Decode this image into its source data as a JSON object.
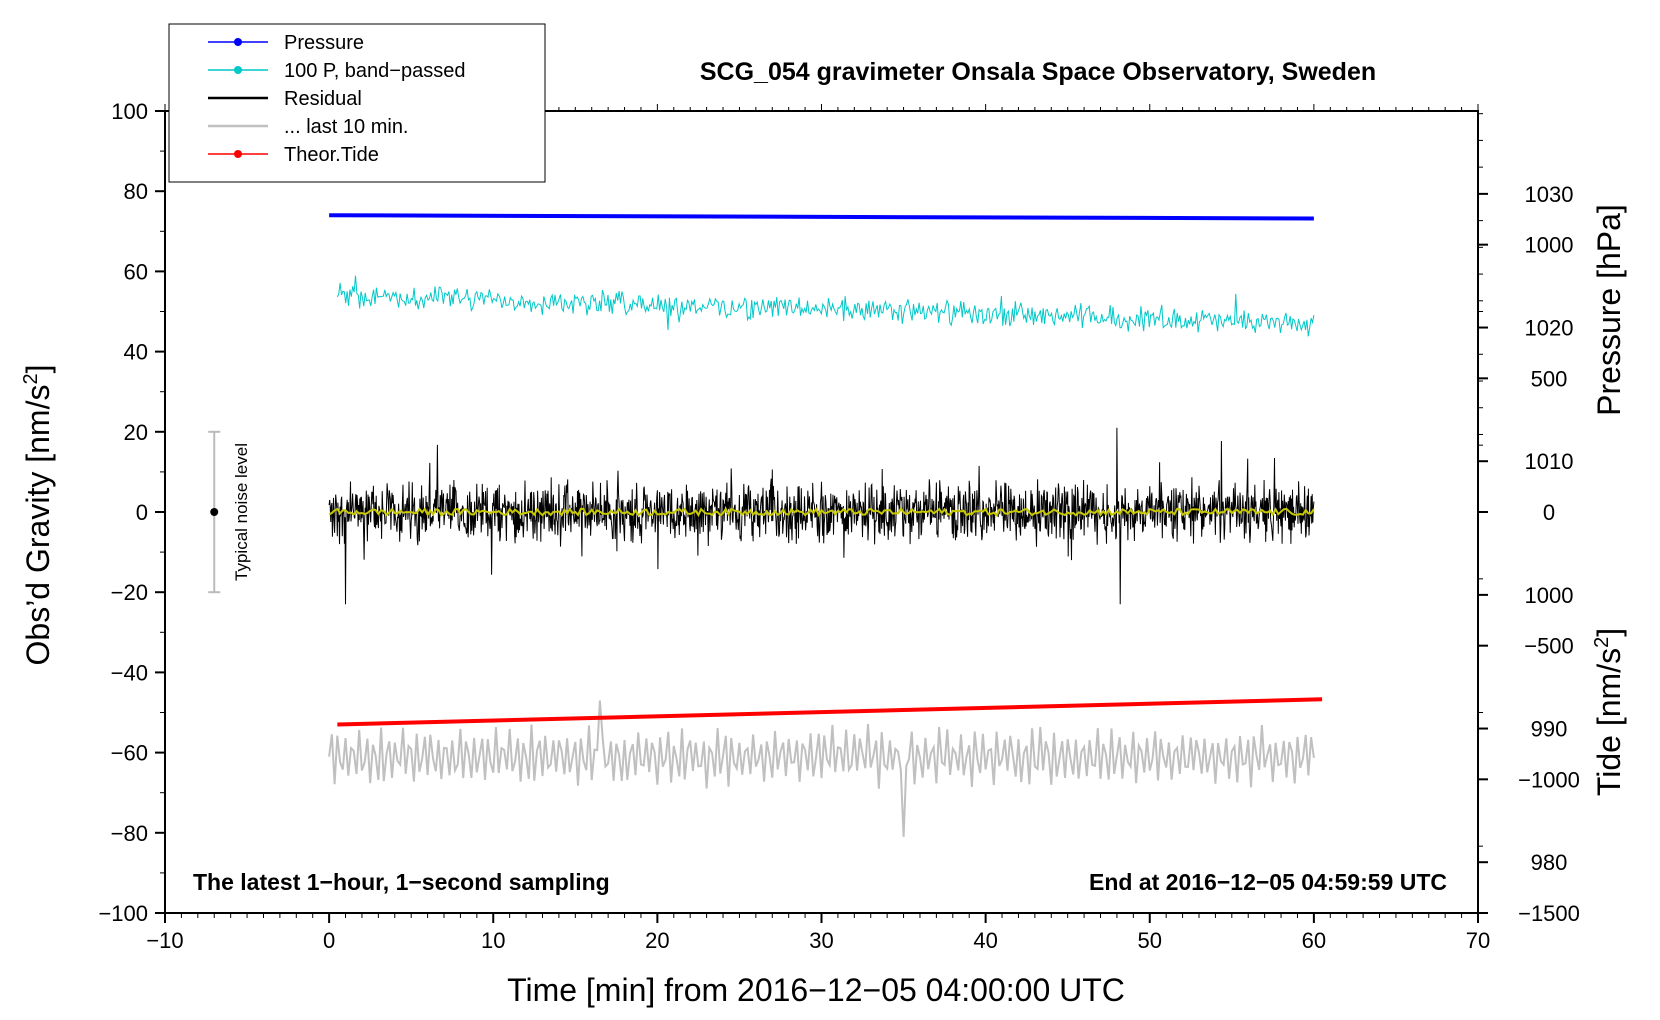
{
  "chart_data": {
    "type": "line",
    "title": "SCG_054 gravimeter Onsala Space Observatory, Sweden",
    "xlabel": "Time [min] from 2016−12−05 04:00:00 UTC",
    "ylabel": "Obs'd Gravity [nm/s²]",
    "ylabel_right_pressure": "Pressure [hPa]",
    "ylabel_right_tide": "Tide [nm/s²]",
    "xlim": [
      -10,
      70
    ],
    "ylim": [
      -100,
      100
    ],
    "x_ticks": [
      "−10",
      "0",
      "10",
      "20",
      "30",
      "40",
      "50",
      "60",
      "70"
    ],
    "x_tick_values": [
      -10,
      0,
      10,
      20,
      30,
      40,
      50,
      60,
      70
    ],
    "y_ticks": [
      "100",
      "80",
      "60",
      "40",
      "20",
      "0",
      "−20",
      "−40",
      "−60",
      "−80",
      "−100"
    ],
    "y_tick_values": [
      100,
      80,
      60,
      40,
      20,
      0,
      -20,
      -40,
      -60,
      -80,
      -100
    ],
    "pressure_ticks": [
      "1030",
      "1020",
      "1010",
      "1000",
      "990",
      "980"
    ],
    "pressure_tick_values": [
      1030,
      1020,
      1010,
      1000,
      990,
      980
    ],
    "pressure_range_hPa": [
      976.2,
      1036.2
    ],
    "tide_ticks": [
      "1000",
      "500",
      "0",
      "−500",
      "−1000",
      "−1500"
    ],
    "tide_tick_values": [
      1000,
      500,
      0,
      -500,
      -1000,
      -1500
    ],
    "tide_range": [
      -1500,
      1500
    ],
    "annotation_left": "The latest 1−hour, 1−second sampling",
    "annotation_right": "End at 2016−12−05 04:59:59 UTC",
    "noise_label": "Typical noise level",
    "noise_range": [
      -20,
      20
    ],
    "noise_x": -7,
    "series": [
      {
        "name": "Pressure",
        "color": "#0000ff",
        "x_start": 0,
        "x_end": 60,
        "y_start": 74,
        "y_end": 73.2
      },
      {
        "name": "100 P, band−passed",
        "color": "#00c8c8",
        "x_start": 0.5,
        "x_end": 60,
        "center_start": 54,
        "center_end": 47,
        "amplitude": 3
      },
      {
        "name": "Residual",
        "color": "#000000",
        "x_start": 0,
        "x_end": 60,
        "center": 0,
        "amplitude": 7,
        "peaks": [
          {
            "x": 48,
            "y": 21
          },
          {
            "x": 48.2,
            "y": -23
          },
          {
            "x": 1,
            "y": -23
          }
        ]
      },
      {
        "name": "... last 10 min.",
        "color": "#c0c0c0",
        "x_start": 0,
        "x_end": 60,
        "center": -61,
        "amplitude": 7,
        "peaks": [
          {
            "x": 16.5,
            "y": -47
          },
          {
            "x": 35,
            "y": -81
          }
        ]
      },
      {
        "name": "Theor.Tide",
        "color": "#ff0000",
        "x_start": 0.5,
        "x_end": 60.5,
        "y_start": -53,
        "y_end": -46.7
      },
      {
        "name": "smoothed residual",
        "color": "#c8c800",
        "x_start": 0,
        "x_end": 60,
        "center": 0,
        "amplitude": 0.8
      }
    ],
    "legend_placement": "top-left"
  }
}
